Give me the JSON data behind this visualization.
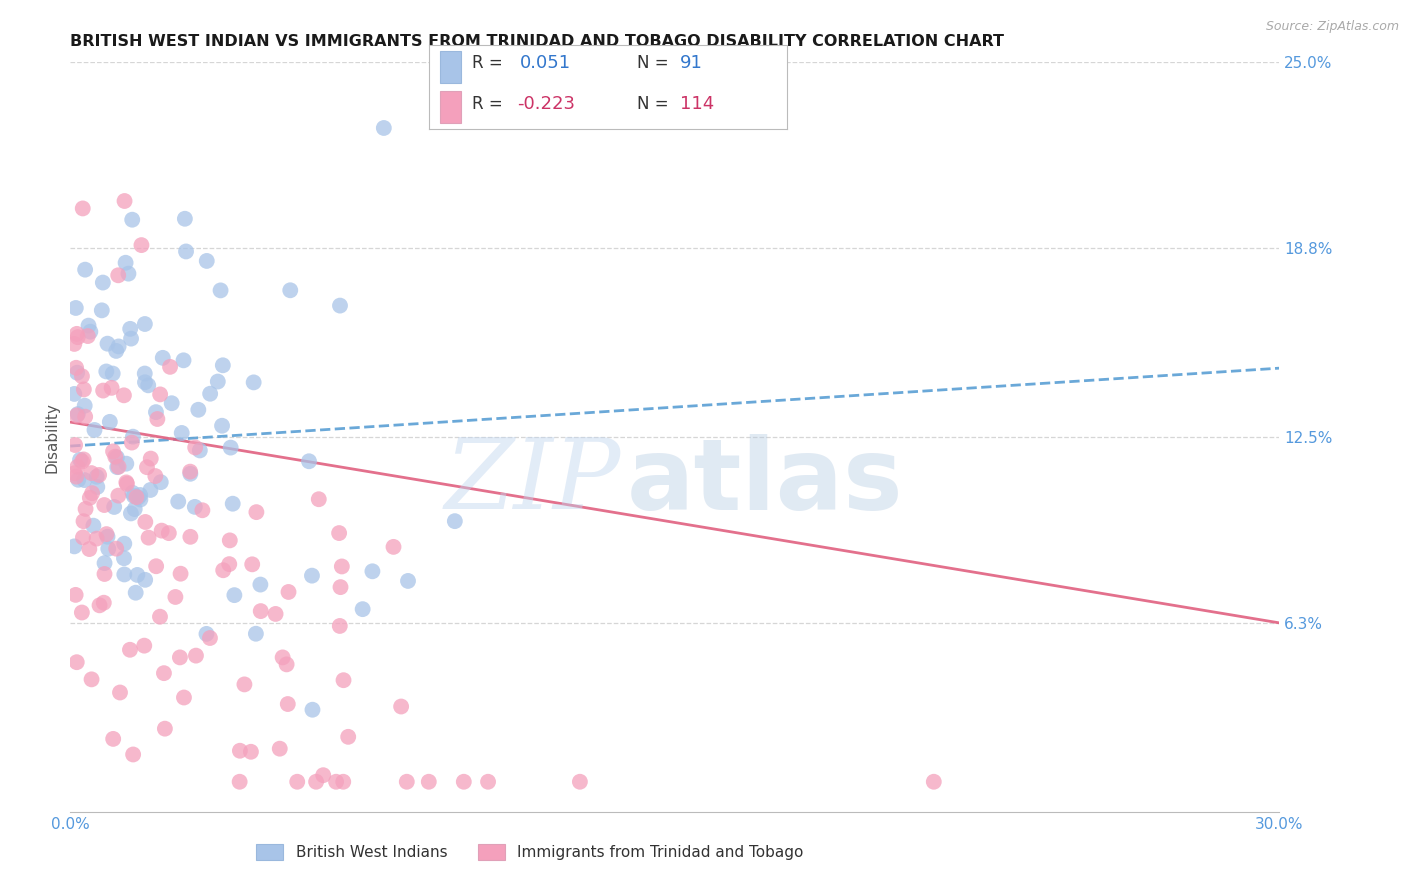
{
  "title": "BRITISH WEST INDIAN VS IMMIGRANTS FROM TRINIDAD AND TOBAGO DISABILITY CORRELATION CHART",
  "source": "Source: ZipAtlas.com",
  "ylabel": "Disability",
  "xlim": [
    0.0,
    0.3
  ],
  "ylim": [
    0.0,
    0.25
  ],
  "xtick_vals": [
    0.0,
    0.3
  ],
  "ytick_vals_right": [
    0.063,
    0.125,
    0.188,
    0.25
  ],
  "ytick_labels_right": [
    "6.3%",
    "12.5%",
    "18.8%",
    "25.0%"
  ],
  "grid_color": "#cccccc",
  "background_color": "#ffffff",
  "blue_color": "#a8c4e8",
  "pink_color": "#f4a0bc",
  "blue_line_color": "#5a9fd4",
  "pink_line_color": "#e06080",
  "title_color": "#1a1a1a",
  "source_color": "#aaaaaa",
  "tick_color": "#5599dd",
  "legend_label1": "British West Indians",
  "legend_label2": "Immigrants from Trinidad and Tobago",
  "watermark_zip": "ZIP",
  "watermark_atlas": "atlas",
  "blue_trend_x0": 0.0,
  "blue_trend_x1": 0.3,
  "blue_trend_y0": 0.122,
  "blue_trend_y1": 0.148,
  "pink_trend_x0": 0.0,
  "pink_trend_x1": 0.3,
  "pink_trend_y0": 0.13,
  "pink_trend_y1": 0.063
}
